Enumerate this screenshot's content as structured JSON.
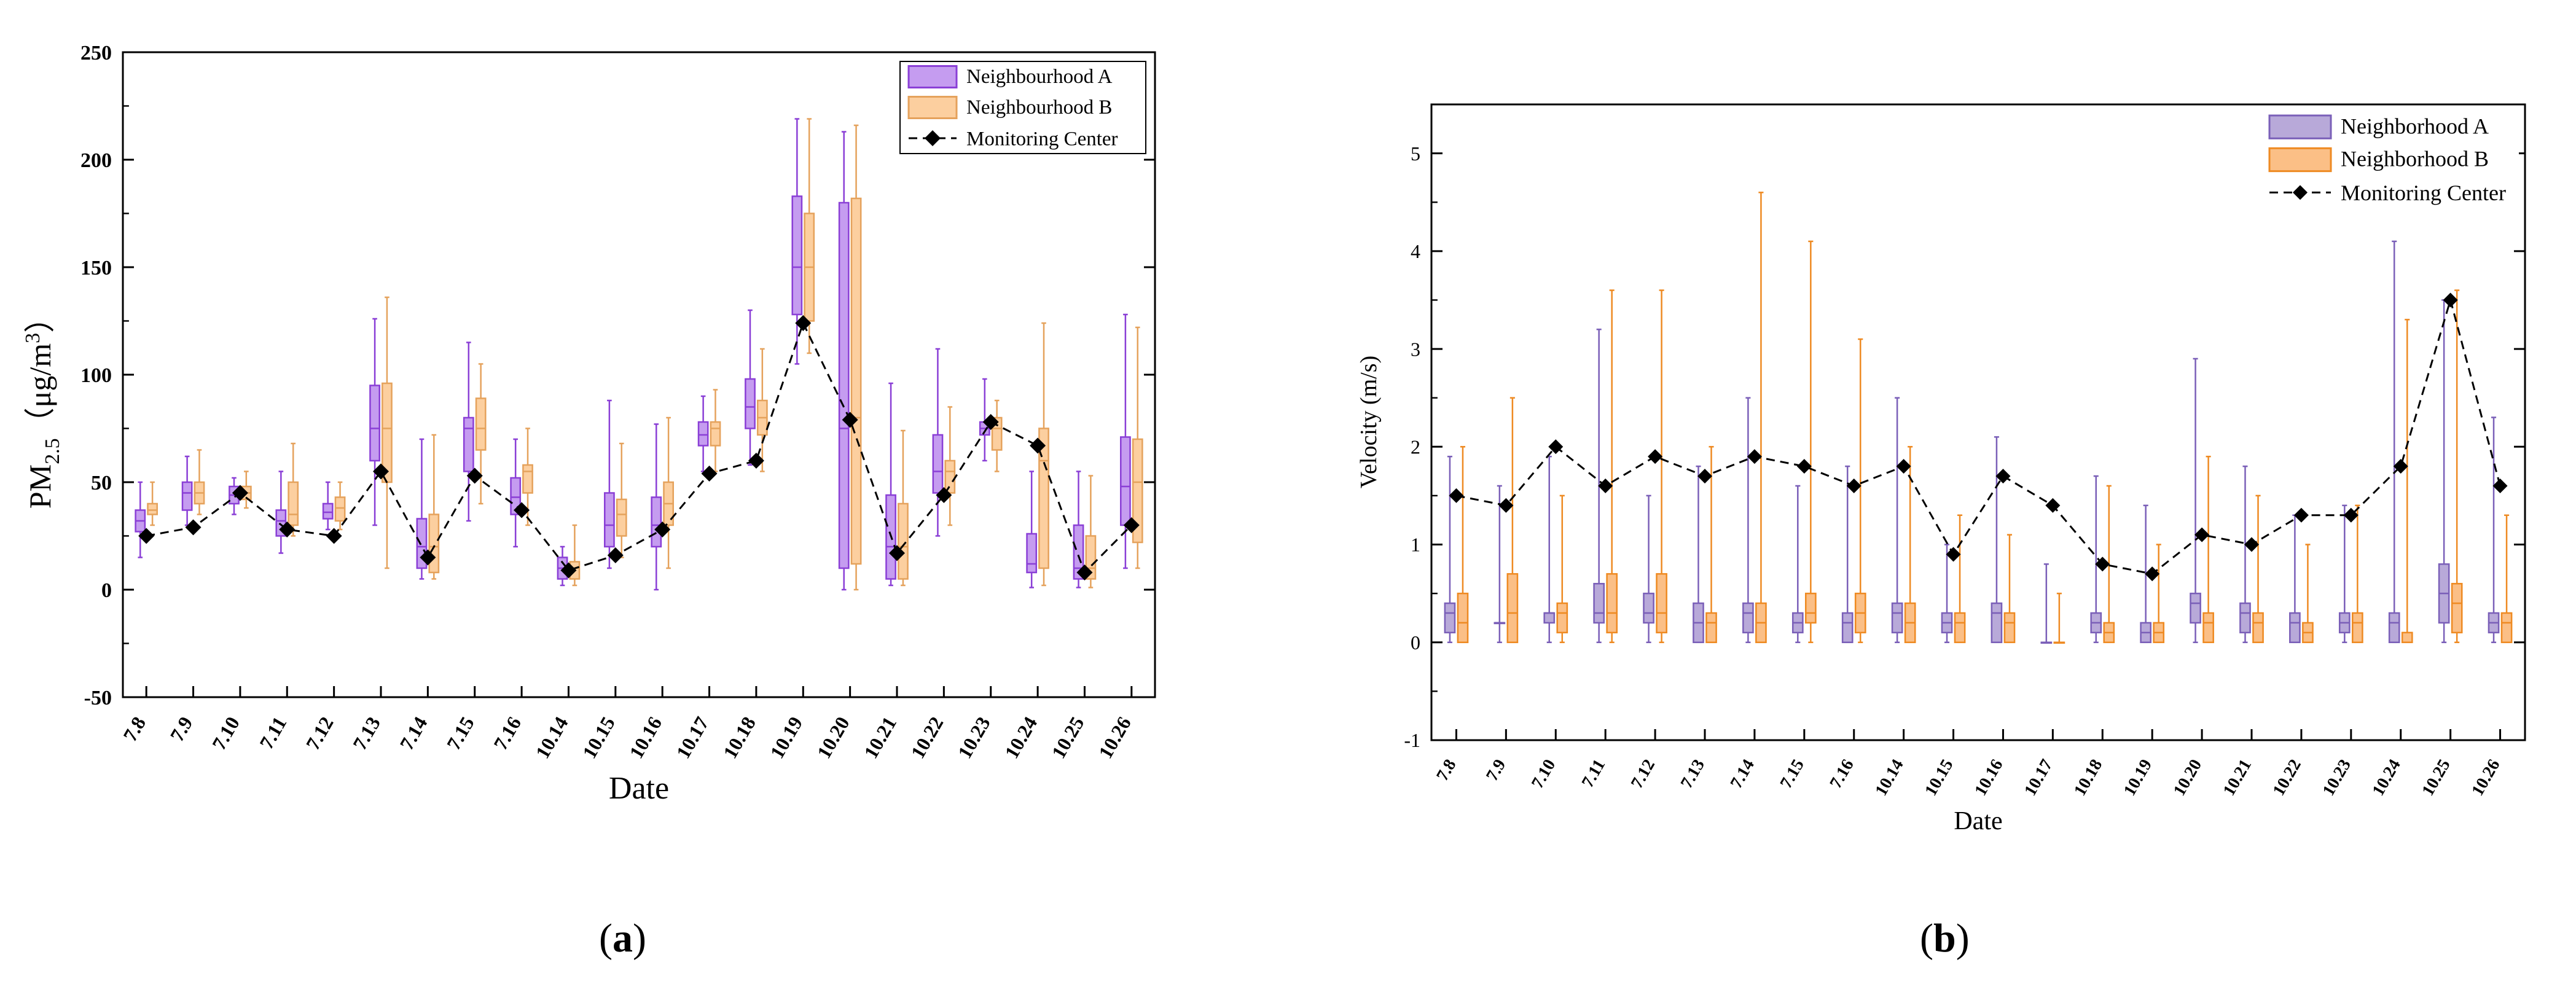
{
  "chart_data": [
    {
      "panel": "(a)",
      "type": "box",
      "ylabel_main": "PM",
      "ylabel_sub": "2.5",
      "ylabel_units": "（μg/m",
      "ylabel_sup": "3",
      "ylabel_close": "）",
      "xlabel": "Date",
      "ylim": [
        -50,
        250
      ],
      "yticks": [
        -50,
        0,
        50,
        100,
        150,
        200,
        250
      ],
      "categories": [
        "7.8",
        "7.9",
        "7.10",
        "7.11",
        "7.12",
        "7.13",
        "7.14",
        "7.15",
        "7.16",
        "10.14",
        "10.15",
        "10.16",
        "10.17",
        "10.18",
        "10.19",
        "10.20",
        "10.21",
        "10.22",
        "10.23",
        "10.24",
        "10.25",
        "10.26"
      ],
      "legend": [
        "Neighbourhood A",
        "Neighbourhood B",
        "Monitoring Center"
      ],
      "colors": {
        "A_fill": "#c59cf0",
        "A_edge": "#8a3fd6",
        "B_fill": "#fccf9f",
        "B_edge": "#e5a25c",
        "line": "#000000"
      },
      "series": [
        {
          "name": "Neighbourhood A",
          "boxes": [
            [
              15,
              27,
              32,
              37,
              50
            ],
            [
              30,
              37,
              45,
              50,
              62
            ],
            [
              35,
              40,
              44,
              48,
              52
            ],
            [
              17,
              25,
              32,
              37,
              55
            ],
            [
              28,
              33,
              36,
              40,
              50
            ],
            [
              30,
              60,
              75,
              95,
              126
            ],
            [
              5,
              10,
              20,
              33,
              70
            ],
            [
              32,
              55,
              75,
              80,
              115
            ],
            [
              20,
              35,
              43,
              52,
              70
            ],
            [
              2,
              5,
              10,
              15,
              20
            ],
            [
              10,
              20,
              30,
              45,
              88
            ],
            [
              0,
              20,
              30,
              43,
              77
            ],
            [
              55,
              67,
              72,
              78,
              90
            ],
            [
              58,
              75,
              85,
              98,
              130
            ],
            [
              105,
              128,
              150,
              183,
              219
            ],
            [
              0,
              10,
              75,
              180,
              213
            ],
            [
              2,
              5,
              20,
              44,
              96
            ],
            [
              25,
              45,
              55,
              72,
              112
            ],
            [
              60,
              72,
              75,
              78,
              98
            ],
            [
              1,
              8,
              12,
              26,
              55
            ],
            [
              1,
              5,
              10,
              30,
              55
            ],
            [
              10,
              30,
              48,
              71,
              128
            ]
          ]
        },
        {
          "name": "Neighbourhood B",
          "boxes": [
            [
              30,
              35,
              37,
              40,
              50
            ],
            [
              35,
              40,
              45,
              50,
              65
            ],
            [
              38,
              42,
              45,
              48,
              55
            ],
            [
              25,
              30,
              35,
              50,
              68
            ],
            [
              28,
              32,
              38,
              43,
              50
            ],
            [
              10,
              50,
              75,
              96,
              136
            ],
            [
              5,
              8,
              20,
              35,
              72
            ],
            [
              40,
              65,
              75,
              89,
              105
            ],
            [
              30,
              45,
              55,
              58,
              75
            ],
            [
              2,
              5,
              10,
              13,
              30
            ],
            [
              15,
              25,
              35,
              42,
              68
            ],
            [
              10,
              30,
              40,
              50,
              80
            ],
            [
              55,
              67,
              75,
              78,
              93
            ],
            [
              55,
              72,
              80,
              88,
              112
            ],
            [
              110,
              125,
              150,
              175,
              219
            ],
            [
              0,
              12,
              80,
              182,
              216
            ],
            [
              2,
              5,
              20,
              40,
              74
            ],
            [
              30,
              45,
              55,
              60,
              85
            ],
            [
              55,
              65,
              75,
              80,
              88
            ],
            [
              2,
              10,
              60,
              75,
              124
            ],
            [
              1,
              5,
              10,
              25,
              53
            ],
            [
              10,
              22,
              50,
              70,
              122
            ]
          ]
        },
        {
          "name": "Monitoring Center",
          "values": [
            25,
            29,
            45,
            28,
            25,
            55,
            15,
            53,
            37,
            9,
            16,
            28,
            54,
            60,
            124,
            79,
            17,
            44,
            78,
            67,
            8,
            30
          ]
        }
      ]
    },
    {
      "panel": "(b)",
      "type": "box",
      "ylabel": "Velocity (m/s)",
      "xlabel": "Date",
      "ylim": [
        -1,
        5.5
      ],
      "yticks": [
        -1,
        0,
        1,
        2,
        3,
        4,
        5
      ],
      "categories": [
        "7.8",
        "7.9",
        "7.10",
        "7.11",
        "7.12",
        "7.13",
        "7.14",
        "7.15",
        "7.16",
        "10.14",
        "10.15",
        "10.16",
        "10.17",
        "10.18",
        "10.19",
        "10.20",
        "10.21",
        "10.22",
        "10.23",
        "10.24",
        "10.25",
        "10.26"
      ],
      "legend": [
        "Neighborhood A",
        "Neighborhood B",
        "Monitoring Center"
      ],
      "colors": {
        "A_fill": "#b8a9d9",
        "A_edge": "#7a5fb8",
        "B_fill": "#fbbf86",
        "B_edge": "#ee8a22",
        "line": "#000000"
      },
      "series": [
        {
          "name": "Neighborhood A",
          "boxes": [
            [
              0,
              0.1,
              0.3,
              0.4,
              1.9
            ],
            [
              0,
              0.2,
              0.2,
              0.2,
              1.6
            ],
            [
              0,
              0.2,
              0.3,
              0.3,
              1.9
            ],
            [
              0,
              0.2,
              0.3,
              0.6,
              3.2
            ],
            [
              0,
              0.2,
              0.3,
              0.5,
              1.5
            ],
            [
              0,
              0,
              0.2,
              0.4,
              1.8
            ],
            [
              0,
              0.1,
              0.3,
              0.4,
              2.5
            ],
            [
              0,
              0.1,
              0.2,
              0.3,
              1.6
            ],
            [
              0,
              0,
              0.2,
              0.3,
              1.8
            ],
            [
              0,
              0.1,
              0.3,
              0.4,
              2.5
            ],
            [
              0,
              0.1,
              0.2,
              0.3,
              1.0
            ],
            [
              0,
              0,
              0.3,
              0.4,
              2.1
            ],
            [
              0,
              0,
              0,
              0,
              0.8
            ],
            [
              0,
              0.1,
              0.2,
              0.3,
              1.7
            ],
            [
              0,
              0,
              0.1,
              0.2,
              1.4
            ],
            [
              0,
              0.2,
              0.4,
              0.5,
              2.9
            ],
            [
              0,
              0.1,
              0.3,
              0.4,
              1.8
            ],
            [
              0,
              0,
              0.2,
              0.3,
              1.3
            ],
            [
              0,
              0.1,
              0.2,
              0.3,
              1.4
            ],
            [
              0,
              0,
              0.2,
              0.3,
              4.1
            ],
            [
              0,
              0.2,
              0.5,
              0.8,
              3.5
            ],
            [
              0,
              0.1,
              0.2,
              0.3,
              2.3
            ]
          ]
        },
        {
          "name": "Neighborhood B",
          "boxes": [
            [
              0,
              0,
              0.2,
              0.5,
              2.0
            ],
            [
              0,
              0,
              0.3,
              0.7,
              2.5
            ],
            [
              0,
              0.1,
              0.3,
              0.4,
              1.5
            ],
            [
              0,
              0.1,
              0.3,
              0.7,
              3.6
            ],
            [
              0,
              0.1,
              0.3,
              0.7,
              3.6
            ],
            [
              0,
              0,
              0.2,
              0.3,
              2.0
            ],
            [
              0,
              0,
              0.2,
              0.4,
              4.6
            ],
            [
              0,
              0.2,
              0.3,
              0.5,
              4.1
            ],
            [
              0,
              0.1,
              0.3,
              0.5,
              3.1
            ],
            [
              0,
              0,
              0.2,
              0.4,
              2.0
            ],
            [
              0,
              0,
              0.2,
              0.3,
              1.3
            ],
            [
              0,
              0,
              0.2,
              0.3,
              1.1
            ],
            [
              0,
              0,
              0,
              0,
              0.5
            ],
            [
              0,
              0,
              0.1,
              0.2,
              1.6
            ],
            [
              0,
              0,
              0.1,
              0.2,
              1.0
            ],
            [
              0,
              0,
              0.2,
              0.3,
              1.9
            ],
            [
              0,
              0,
              0.2,
              0.3,
              1.5
            ],
            [
              0,
              0,
              0.1,
              0.2,
              1.0
            ],
            [
              0,
              0,
              0.2,
              0.3,
              1.4
            ],
            [
              0,
              0,
              0,
              0.1,
              3.3
            ],
            [
              0,
              0.1,
              0.4,
              0.6,
              3.6
            ],
            [
              0,
              0,
              0.2,
              0.3,
              1.3
            ]
          ]
        },
        {
          "name": "Monitoring Center",
          "values": [
            1.5,
            1.4,
            2.0,
            1.6,
            1.9,
            1.7,
            1.9,
            1.8,
            1.6,
            1.8,
            0.9,
            1.7,
            1.4,
            0.8,
            0.7,
            1.1,
            1.0,
            1.3,
            1.3,
            1.8,
            3.5,
            1.6
          ]
        }
      ]
    }
  ],
  "captions": {
    "a": "a",
    "b": "b"
  }
}
